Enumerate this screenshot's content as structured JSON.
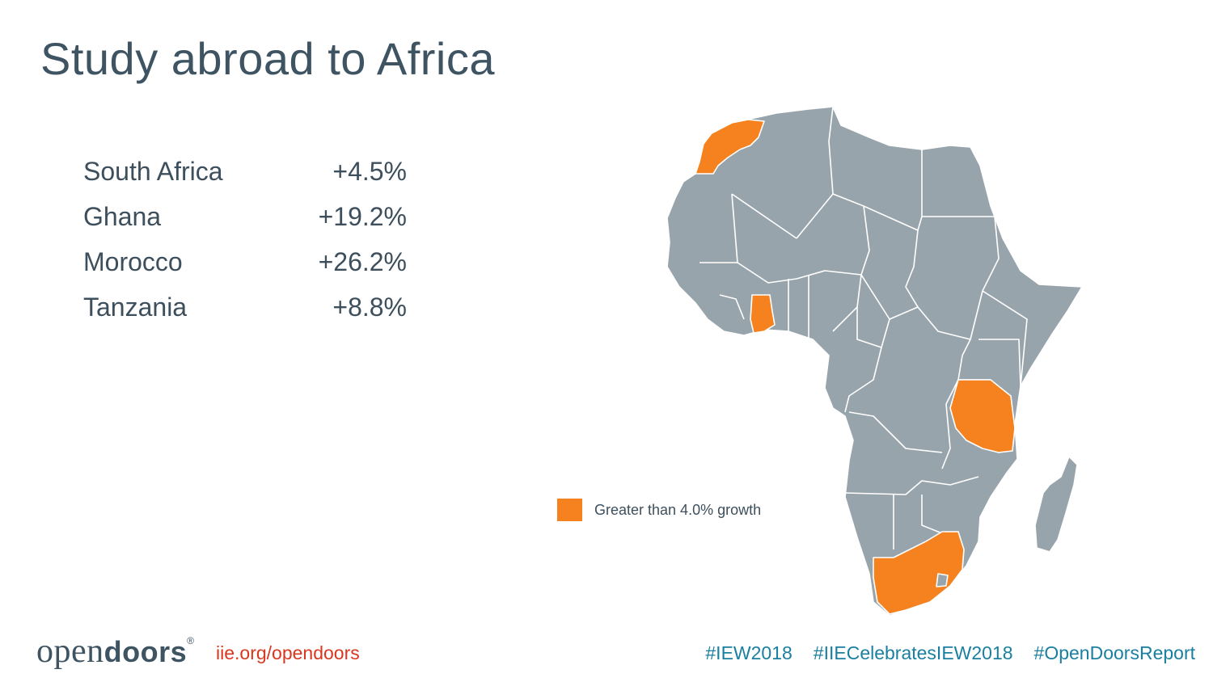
{
  "slide": {
    "title": "Study abroad to Africa"
  },
  "stats": [
    {
      "country": "South Africa",
      "change": "+4.5%"
    },
    {
      "country": "Ghana",
      "change": "+19.2%"
    },
    {
      "country": "Morocco",
      "change": "+26.2%"
    },
    {
      "country": "Tanzania",
      "change": "+8.8%"
    }
  ],
  "map": {
    "highlighted_countries": [
      "Morocco",
      "Ghana",
      "Tanzania",
      "South Africa"
    ],
    "highlight_color": "#f5821f",
    "base_color": "#98a4ab",
    "border_color": "#ffffff"
  },
  "legend": {
    "label": "Greater than 4.0% growth",
    "color": "#f5821f"
  },
  "footer": {
    "logo_light": "open",
    "logo_bold": "doors",
    "logo_mark": "®",
    "link": "iie.org/opendoors",
    "link_color": "#d9381e",
    "hashtag_color": "#1a7fa0",
    "hashtags": [
      "#IEW2018",
      "#IIECelebratesIEW2018",
      "#OpenDoorsReport"
    ]
  }
}
